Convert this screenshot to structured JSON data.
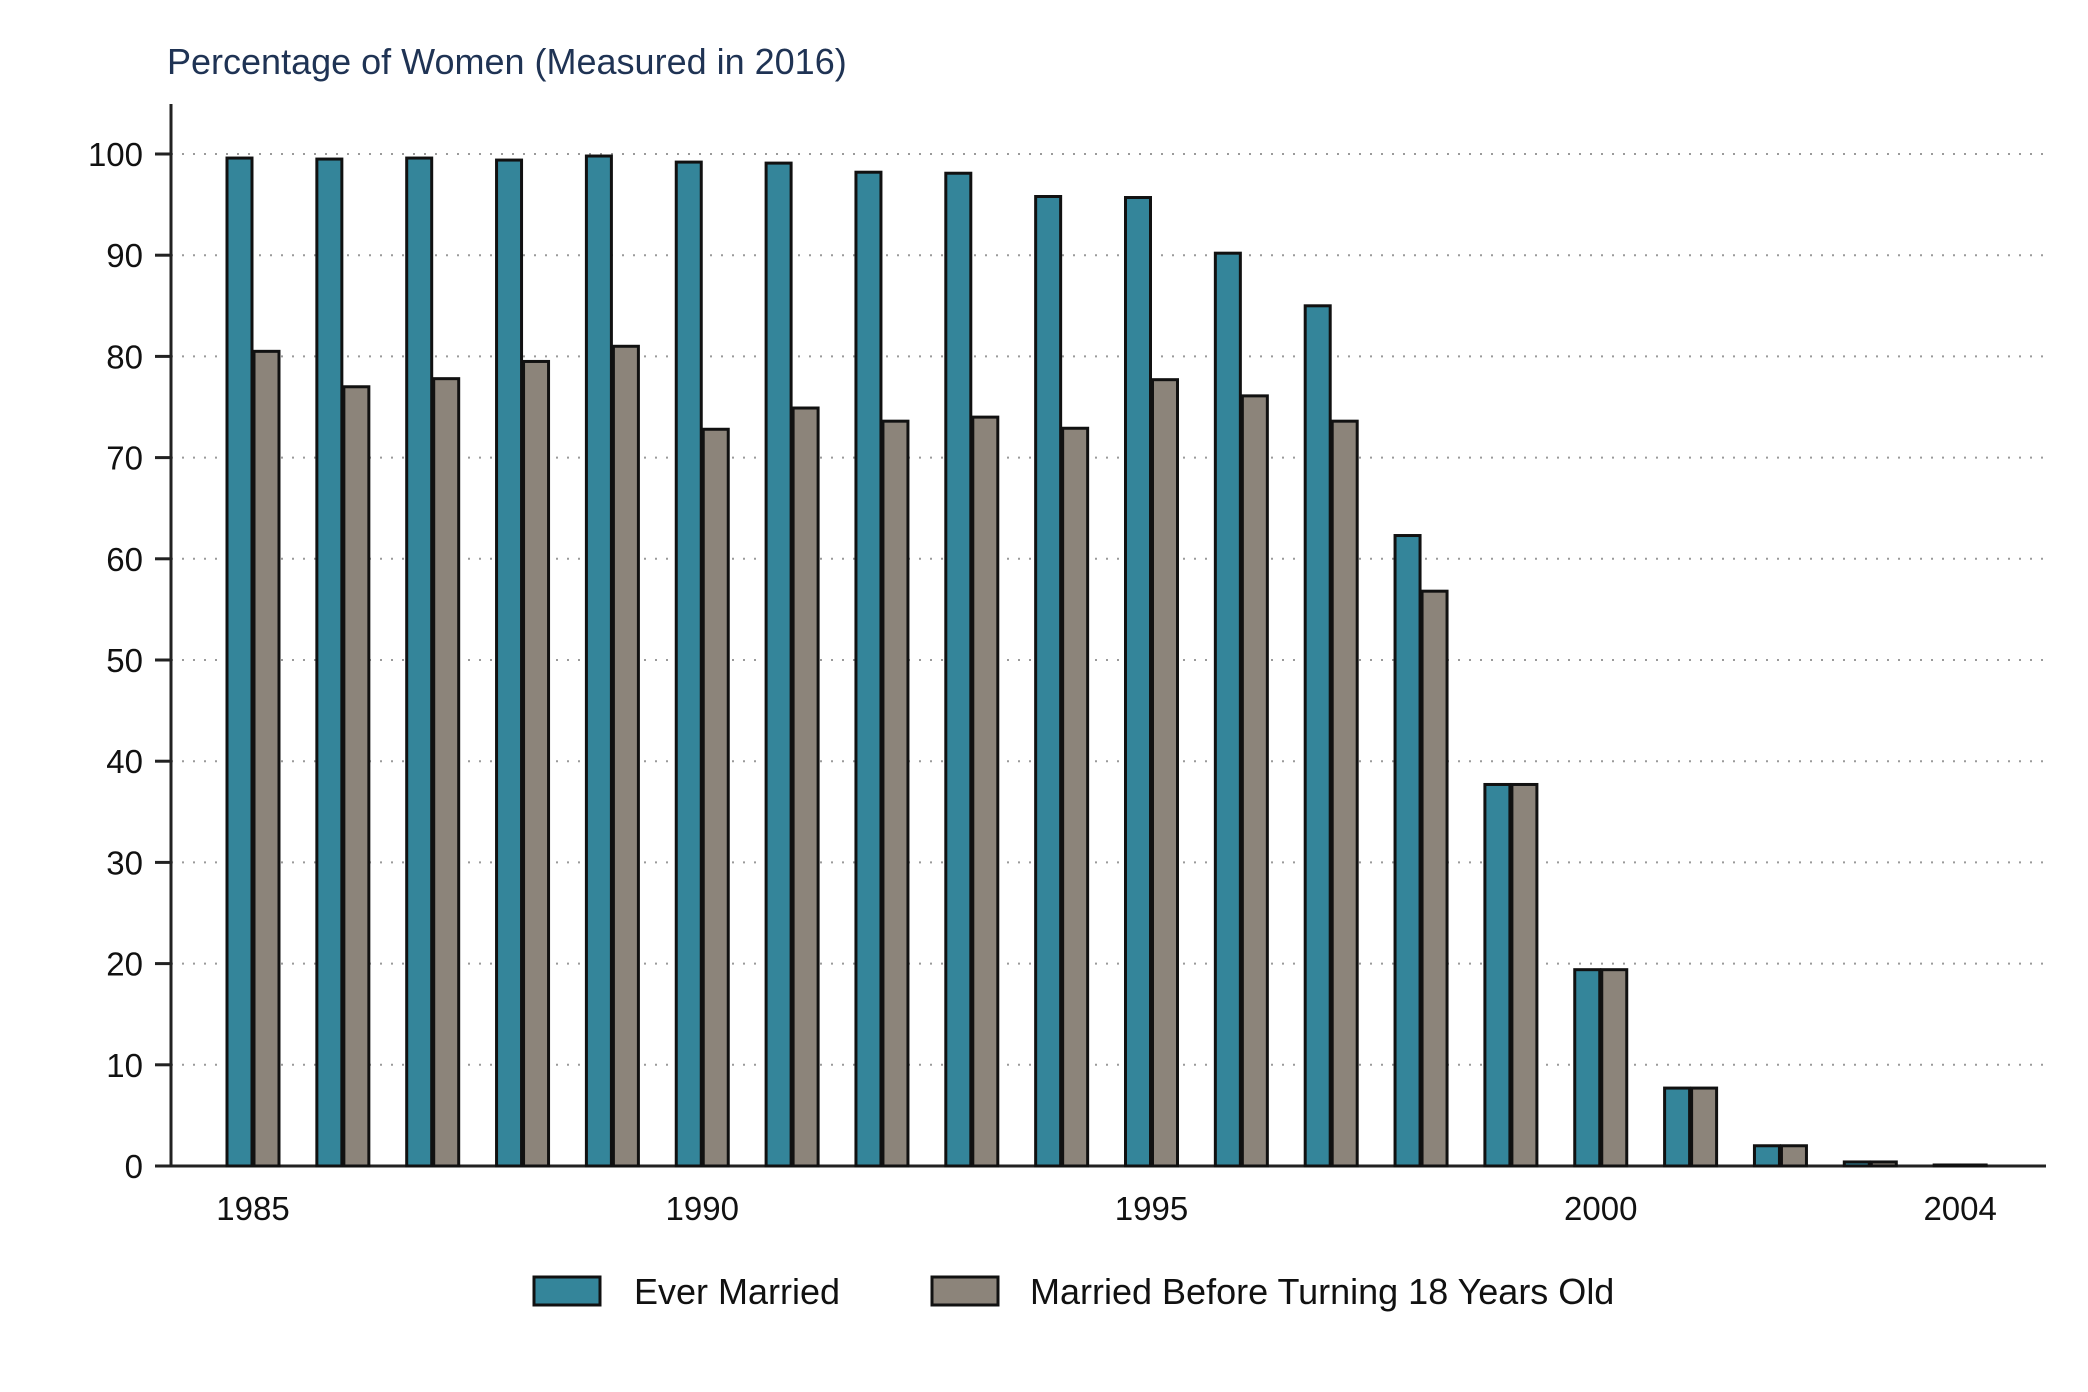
{
  "chart_data": {
    "type": "bar",
    "title": "Percentage of Women (Measured in 2016)",
    "xlabel": "",
    "ylabel": "",
    "ylim": [
      0,
      100
    ],
    "yticks": [
      0,
      10,
      20,
      30,
      40,
      50,
      60,
      70,
      80,
      90,
      100
    ],
    "xticks": [
      "1985",
      "1990",
      "1995",
      "2000",
      "2004"
    ],
    "categories": [
      1985,
      1986,
      1987,
      1988,
      1989,
      1990,
      1991,
      1992,
      1993,
      1994,
      1995,
      1996,
      1997,
      1998,
      1999,
      2000,
      2001,
      2002,
      2003,
      2004
    ],
    "series": [
      {
        "name": "Ever Married",
        "color": "#34859a",
        "values": [
          99.6,
          99.5,
          99.6,
          99.4,
          99.8,
          99.2,
          99.1,
          98.2,
          98.1,
          95.8,
          95.7,
          90.2,
          85.0,
          62.3,
          37.7,
          19.4,
          7.7,
          2.0,
          0.4,
          0.1
        ]
      },
      {
        "name": "Married Before Turning 18 Years Old",
        "color": "#8c847a",
        "values": [
          80.5,
          77.0,
          77.8,
          79.5,
          81.0,
          72.8,
          74.9,
          73.6,
          74.0,
          72.9,
          77.7,
          76.1,
          73.6,
          56.8,
          37.7,
          19.4,
          7.7,
          2.0,
          0.4,
          0.1
        ]
      }
    ],
    "grid": true,
    "grid_style": "dotted",
    "legend_position": "bottom"
  }
}
